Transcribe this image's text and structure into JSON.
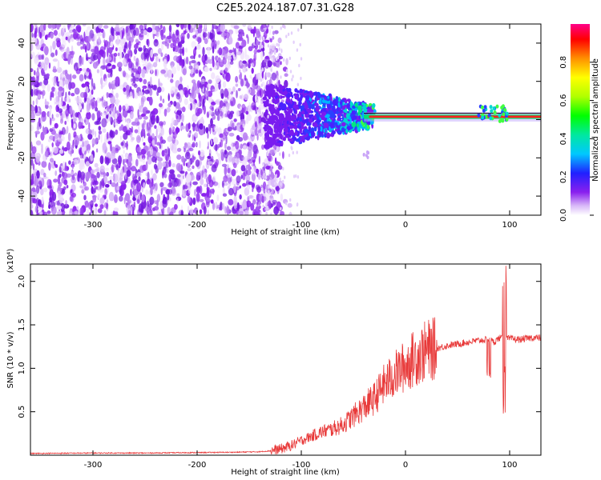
{
  "title": "C2E5.2024.187.07.31.G28",
  "chart_data": [
    {
      "type": "heatmap",
      "xlabel": "Height of straight line (km)",
      "ylabel": "Frequency (Hz)",
      "xlim": [
        -360,
        130
      ],
      "ylim": [
        -50,
        50
      ],
      "x_ticks": [
        -300,
        -200,
        -100,
        0,
        100
      ],
      "y_ticks": [
        -40,
        -20,
        0,
        20,
        40
      ],
      "colorbar": {
        "label": "Normalized spectral amplitude",
        "range": [
          0.0,
          1.0
        ],
        "ticks": [
          "0.0",
          "0.2",
          "0.4",
          "0.6",
          "0.8"
        ]
      },
      "description_regions": [
        {
          "x_range": [
            -360,
            -130
          ],
          "freq_range": [
            -50,
            50
          ],
          "amplitude": "low (0.0-0.1), noisy"
        },
        {
          "x_range": [
            -130,
            -30
          ],
          "freq_range": [
            -12,
            12
          ],
          "amplitude": "medium (0.1-0.5)"
        },
        {
          "x_range": [
            -30,
            130
          ],
          "freq_range": [
            0,
            2
          ],
          "amplitude": "high (0.8-1.0)"
        }
      ]
    },
    {
      "type": "line",
      "xlabel": "Height of straight line (km)",
      "ylabel": "SNR (10 * v/v)",
      "y_multiplier": "(x10⁴)",
      "xlim": [
        -360,
        130
      ],
      "ylim": [
        0,
        2.2
      ],
      "x_ticks": [
        -300,
        -200,
        -100,
        0,
        100
      ],
      "y_ticks": [
        0.5,
        1.0,
        1.5,
        2.0
      ],
      "series": [
        {
          "color": "#e83a3a",
          "x": [
            -360,
            -300,
            -250,
            -200,
            -160,
            -140,
            -130,
            -120,
            -110,
            -100,
            -90,
            -80,
            -70,
            -60,
            -50,
            -40,
            -30,
            -20,
            -10,
            0,
            10,
            20,
            30,
            40,
            50,
            60,
            70,
            80,
            85,
            90,
            95,
            100,
            110,
            120,
            130
          ],
          "y": [
            0.02,
            0.025,
            0.025,
            0.03,
            0.035,
            0.04,
            0.05,
            0.07,
            0.11,
            0.17,
            0.22,
            0.27,
            0.3,
            0.35,
            0.45,
            0.55,
            0.65,
            0.82,
            0.93,
            1.03,
            1.13,
            1.2,
            1.23,
            1.26,
            1.28,
            1.3,
            1.32,
            1.33,
            1.3,
            1.35,
            1.34,
            1.34,
            1.33,
            1.35,
            1.35
          ]
        }
      ]
    }
  ]
}
